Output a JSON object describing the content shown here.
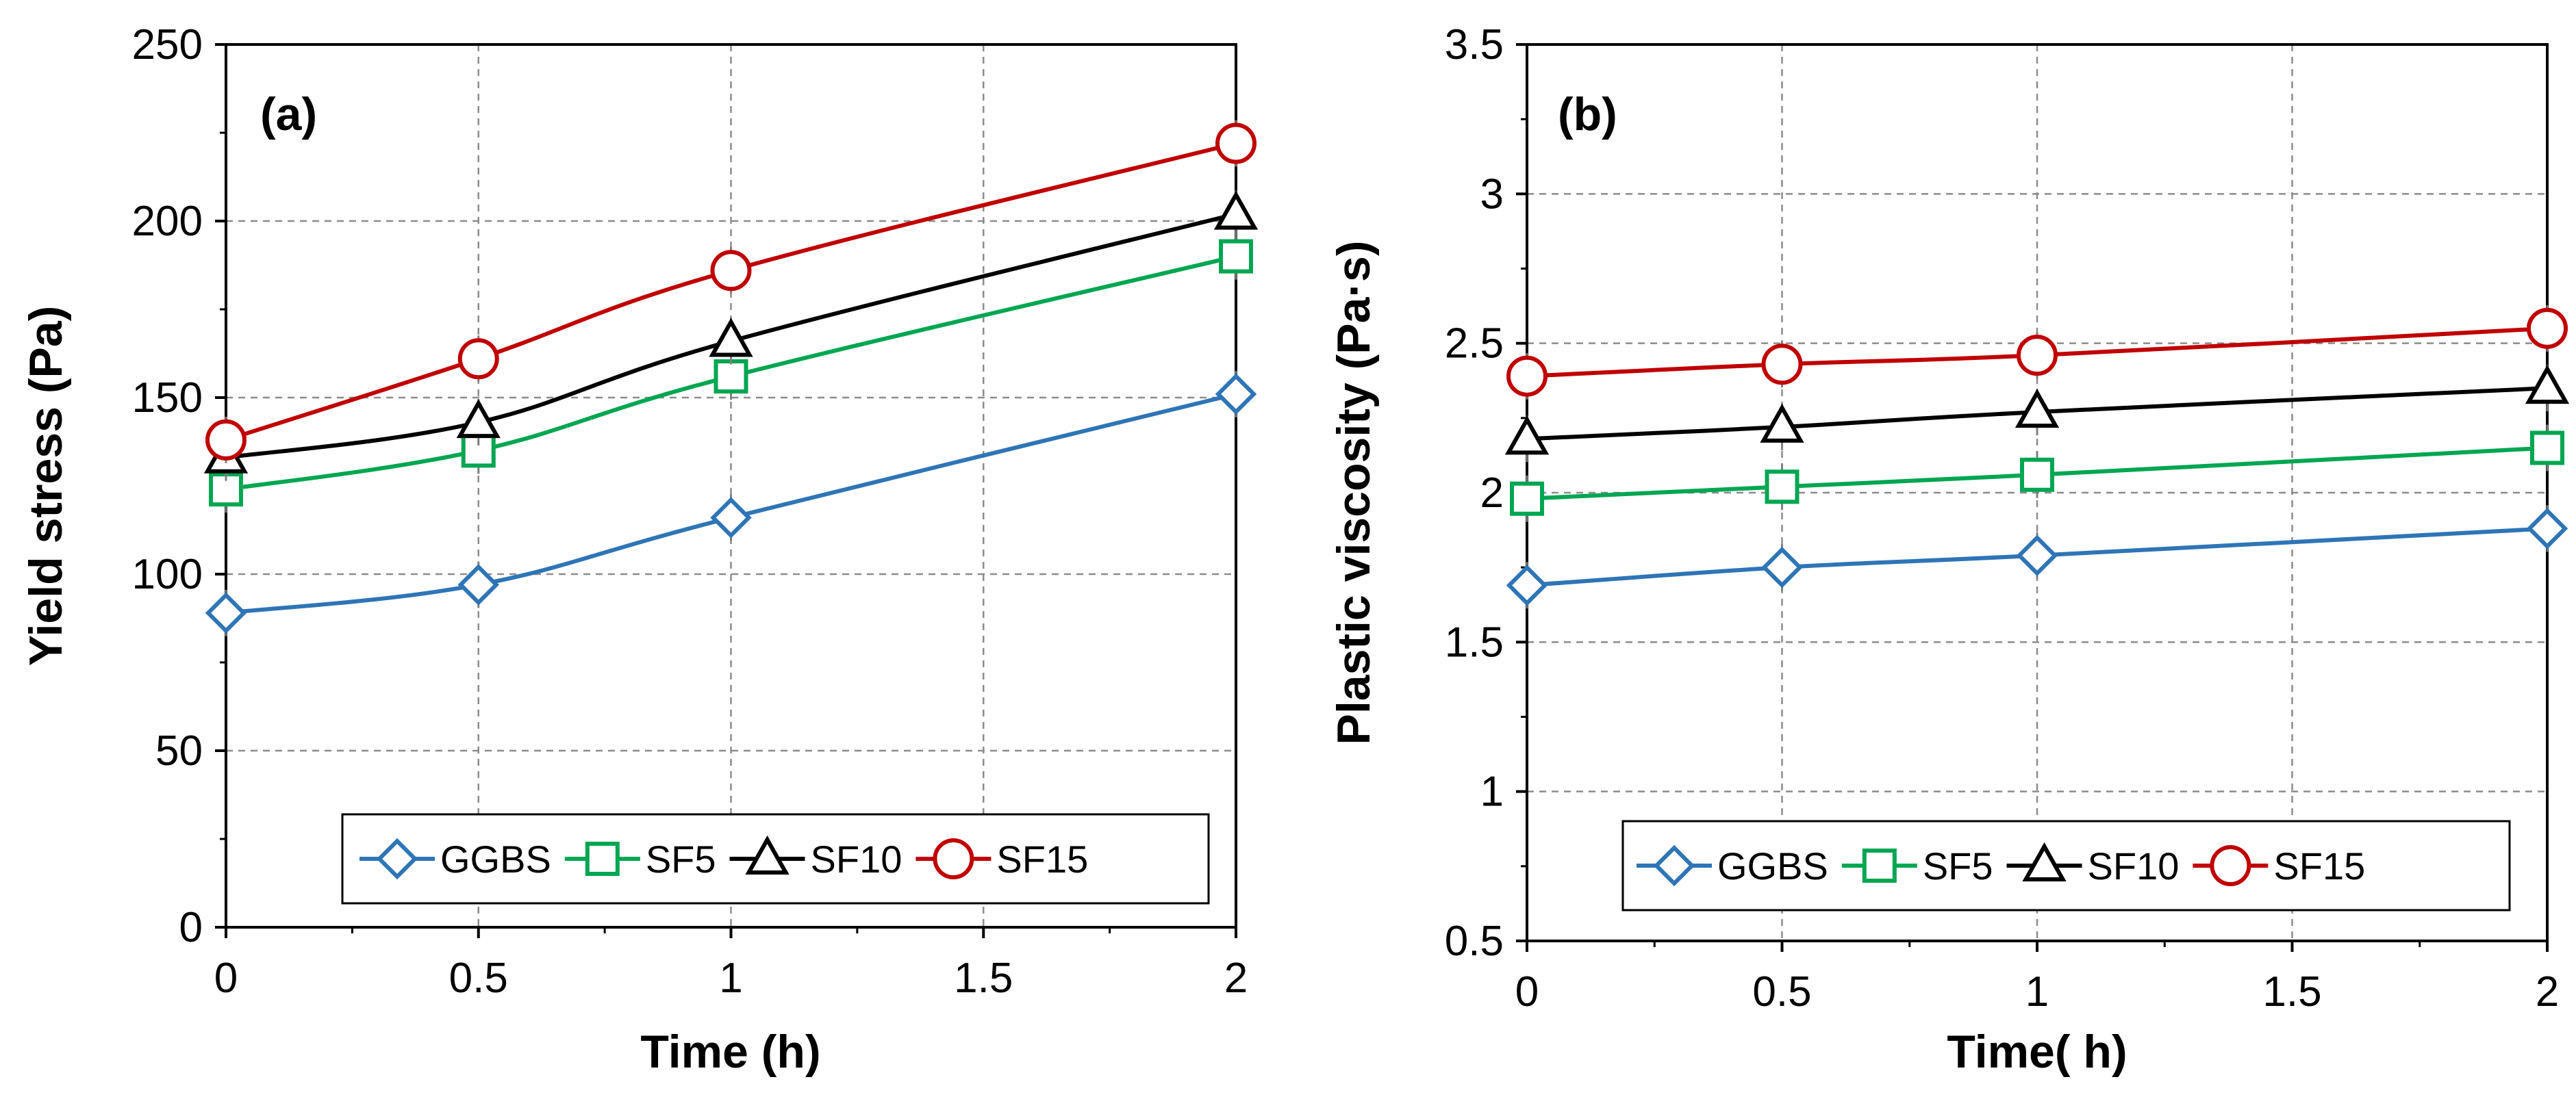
{
  "chart_data": [
    {
      "type": "line",
      "panel_label": "(a)",
      "xlabel": "Time (h)",
      "ylabel": "Yield stress (Pa)",
      "xlim": [
        0,
        2
      ],
      "ylim": [
        0,
        250
      ],
      "xticks": [
        0,
        0.5,
        1,
        1.5,
        2
      ],
      "xtick_labels": [
        "0",
        "0.5",
        "1",
        "1.5",
        "2"
      ],
      "yticks": [
        0,
        50,
        100,
        150,
        200,
        250
      ],
      "ytick_labels": [
        "0",
        "50",
        "100",
        "150",
        "200",
        "250"
      ],
      "grid": true,
      "legend_position": "bottom-right",
      "x": [
        0,
        0.5,
        1,
        2
      ],
      "series": [
        {
          "name": "GGBS",
          "marker": "diamond",
          "color": "#2e75b6",
          "values": [
            89,
            97,
            116,
            151
          ]
        },
        {
          "name": "SF5",
          "marker": "square",
          "color": "#00a651",
          "values": [
            124,
            135,
            156,
            190
          ]
        },
        {
          "name": "SF10",
          "marker": "triangle",
          "color": "#000000",
          "values": [
            133,
            143,
            166,
            202
          ]
        },
        {
          "name": "SF15",
          "marker": "circle",
          "color": "#c00000",
          "values": [
            138,
            161,
            186,
            222
          ]
        }
      ]
    },
    {
      "type": "line",
      "panel_label": "(b)",
      "xlabel": "Time( h)",
      "ylabel": "Plastic viscosity (Pa·s)",
      "xlim": [
        0,
        2
      ],
      "ylim": [
        0.5,
        3.5
      ],
      "xticks": [
        0,
        0.5,
        1,
        1.5,
        2
      ],
      "xtick_labels": [
        "0",
        "0.5",
        "1",
        "1.5",
        "2"
      ],
      "yticks": [
        0.5,
        1,
        1.5,
        2,
        2.5,
        3,
        3.5
      ],
      "ytick_labels": [
        "0.5",
        "1",
        "1.5",
        "2",
        "2.5",
        "3",
        "3.5"
      ],
      "grid": true,
      "legend_position": "bottom",
      "x": [
        0,
        0.5,
        1,
        2
      ],
      "series": [
        {
          "name": "GGBS",
          "marker": "diamond",
          "color": "#2e75b6",
          "values": [
            1.69,
            1.75,
            1.79,
            1.88
          ]
        },
        {
          "name": "SF5",
          "marker": "square",
          "color": "#00a651",
          "values": [
            1.98,
            2.02,
            2.06,
            2.15
          ]
        },
        {
          "name": "SF10",
          "marker": "triangle",
          "color": "#000000",
          "values": [
            2.18,
            2.22,
            2.27,
            2.35
          ]
        },
        {
          "name": "SF15",
          "marker": "circle",
          "color": "#c00000",
          "values": [
            2.39,
            2.43,
            2.46,
            2.55
          ]
        }
      ]
    }
  ]
}
